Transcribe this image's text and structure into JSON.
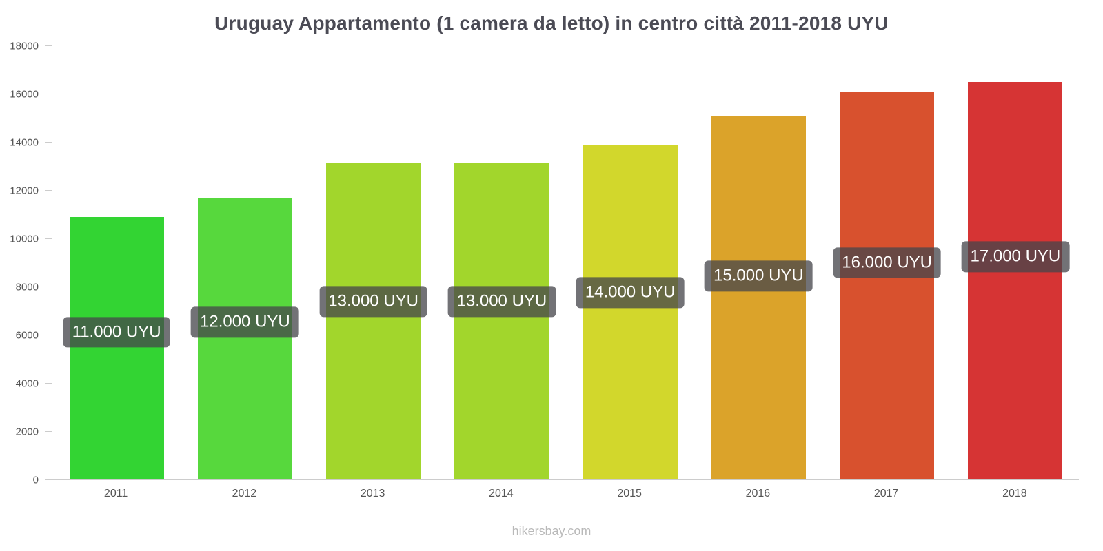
{
  "page": {
    "watermark": "hikersbay.com"
  },
  "chart_data": {
    "type": "bar",
    "title": "Uruguay Appartamento (1 camera da letto) in centro città 2011-2018 UYU",
    "categories": [
      "2011",
      "2012",
      "2013",
      "2014",
      "2015",
      "2016",
      "2017",
      "2018"
    ],
    "values": [
      10900,
      11650,
      13150,
      13150,
      13850,
      15050,
      16050,
      16500
    ],
    "bar_labels": [
      "11.000 UYU",
      "12.000 UYU",
      "13.000 UYU",
      "13.000 UYU",
      "14.000 UYU",
      "15.000 UYU",
      "16.000 UYU",
      "17.000 UYU"
    ],
    "bar_colors": [
      "#33d433",
      "#57d83d",
      "#a2d62c",
      "#a2d62c",
      "#d2d72c",
      "#dba32a",
      "#d8512e",
      "#d63434"
    ],
    "xlabel": "",
    "ylabel": "",
    "ylim": [
      0,
      18000
    ],
    "y_ticks": [
      0,
      2000,
      4000,
      6000,
      8000,
      10000,
      12000,
      14000,
      16000,
      18000
    ],
    "grid": false,
    "legend": false,
    "label_box_color": "rgba(70,70,75,0.76)",
    "label_text_color": "#ffffff",
    "currency": "UYU"
  }
}
